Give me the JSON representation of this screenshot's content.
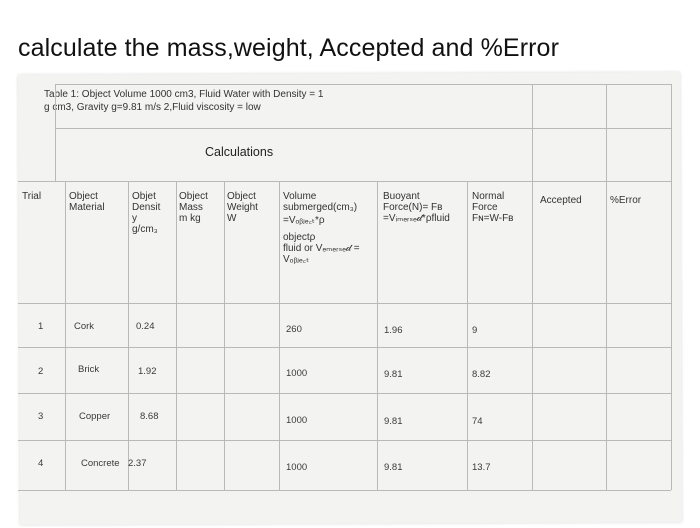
{
  "question": "calculate the mass,weight, Accepted and %Error",
  "caption": {
    "line1": "Table 1: Object Volume 1000 cm3, Fluid Water with Density = 1",
    "line2": "g cm3, Gravity g=9.81 m/s 2,Fluid viscosity = low"
  },
  "calc_header": "Calculations",
  "columns": {
    "trial": [
      "Trial"
    ],
    "material": [
      "Object",
      "Material"
    ],
    "density": [
      "Objet",
      "Densit",
      "y",
      "g/cm₃"
    ],
    "mass": [
      "Object",
      "Mass",
      "m kg"
    ],
    "weight": [
      "Object",
      "Weight",
      "W"
    ],
    "volume": [
      "Volume",
      "submerged(cm₃)",
      "=Vₒᵦⱼₑ꜀ₜ*ρ",
      "objectρ",
      "fluid or Vₑₘₑᵣₛₑ𝒹 =",
      "Vₒᵦⱼₑ꜀ₜ"
    ],
    "buoyant": [
      "Buoyant",
      "Force(N)= Fв",
      "=Vᵢₘₑᵣₛₑ𝒹*ρfluid"
    ],
    "normal": [
      "Normal",
      "Force",
      "Fɴ=W-Fв"
    ],
    "accepted": [
      "Accepted"
    ],
    "error": [
      "%Error"
    ]
  },
  "rows": [
    {
      "trial": "1",
      "material": "Cork",
      "density": "0.24",
      "volume": "260",
      "buoyant": "1.96",
      "normal": "9"
    },
    {
      "trial": "2",
      "material": "Brick",
      "density": "1.92",
      "volume": "1000",
      "buoyant": "9.81",
      "normal": "8.82"
    },
    {
      "trial": "3",
      "material": "Copper",
      "density": "8.68",
      "volume": "1000",
      "buoyant": "9.81",
      "normal": "74"
    },
    {
      "trial": "4",
      "material": "Concrete",
      "density": "2.37",
      "volume": "1000",
      "buoyant": "9.81",
      "normal": "13.7"
    }
  ]
}
